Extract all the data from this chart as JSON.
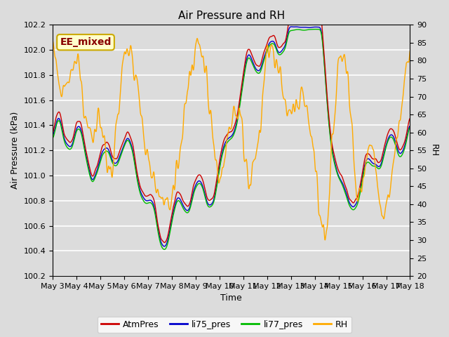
{
  "title": "Air Pressure and RH",
  "xlabel": "Time",
  "ylabel_left": "Air Pressure (kPa)",
  "ylabel_right": "RH",
  "ylim_left": [
    100.2,
    102.2
  ],
  "ylim_right": [
    20,
    90
  ],
  "yticks_left": [
    100.2,
    100.4,
    100.6,
    100.8,
    101.0,
    101.2,
    101.4,
    101.6,
    101.8,
    102.0,
    102.2
  ],
  "yticks_right": [
    20,
    25,
    30,
    35,
    40,
    45,
    50,
    55,
    60,
    65,
    70,
    75,
    80,
    85,
    90
  ],
  "xtick_labels": [
    "May 3",
    "May 4",
    "May 5",
    "May 6",
    "May 7",
    "May 8",
    "May 9",
    "May 10",
    "May 11",
    "May 12",
    "May 13",
    "May 14",
    "May 15",
    "May 16",
    "May 17",
    "May 18"
  ],
  "legend_labels": [
    "AtmPres",
    "li75_pres",
    "li77_pres",
    "RH"
  ],
  "colors": {
    "AtmPres": "#cc0000",
    "li75_pres": "#0000cc",
    "li77_pres": "#00bb00",
    "RH": "#ffaa00"
  },
  "annotation_text": "EE_mixed",
  "annotation_bg": "#ffffcc",
  "annotation_border": "#ccaa00",
  "plot_bg": "#dcdcdc",
  "grid_color": "#ffffff",
  "fig_bg": "#dcdcdc",
  "title_fontsize": 11,
  "label_fontsize": 9,
  "tick_fontsize": 8,
  "legend_fontsize": 9,
  "linewidth": 1.0
}
